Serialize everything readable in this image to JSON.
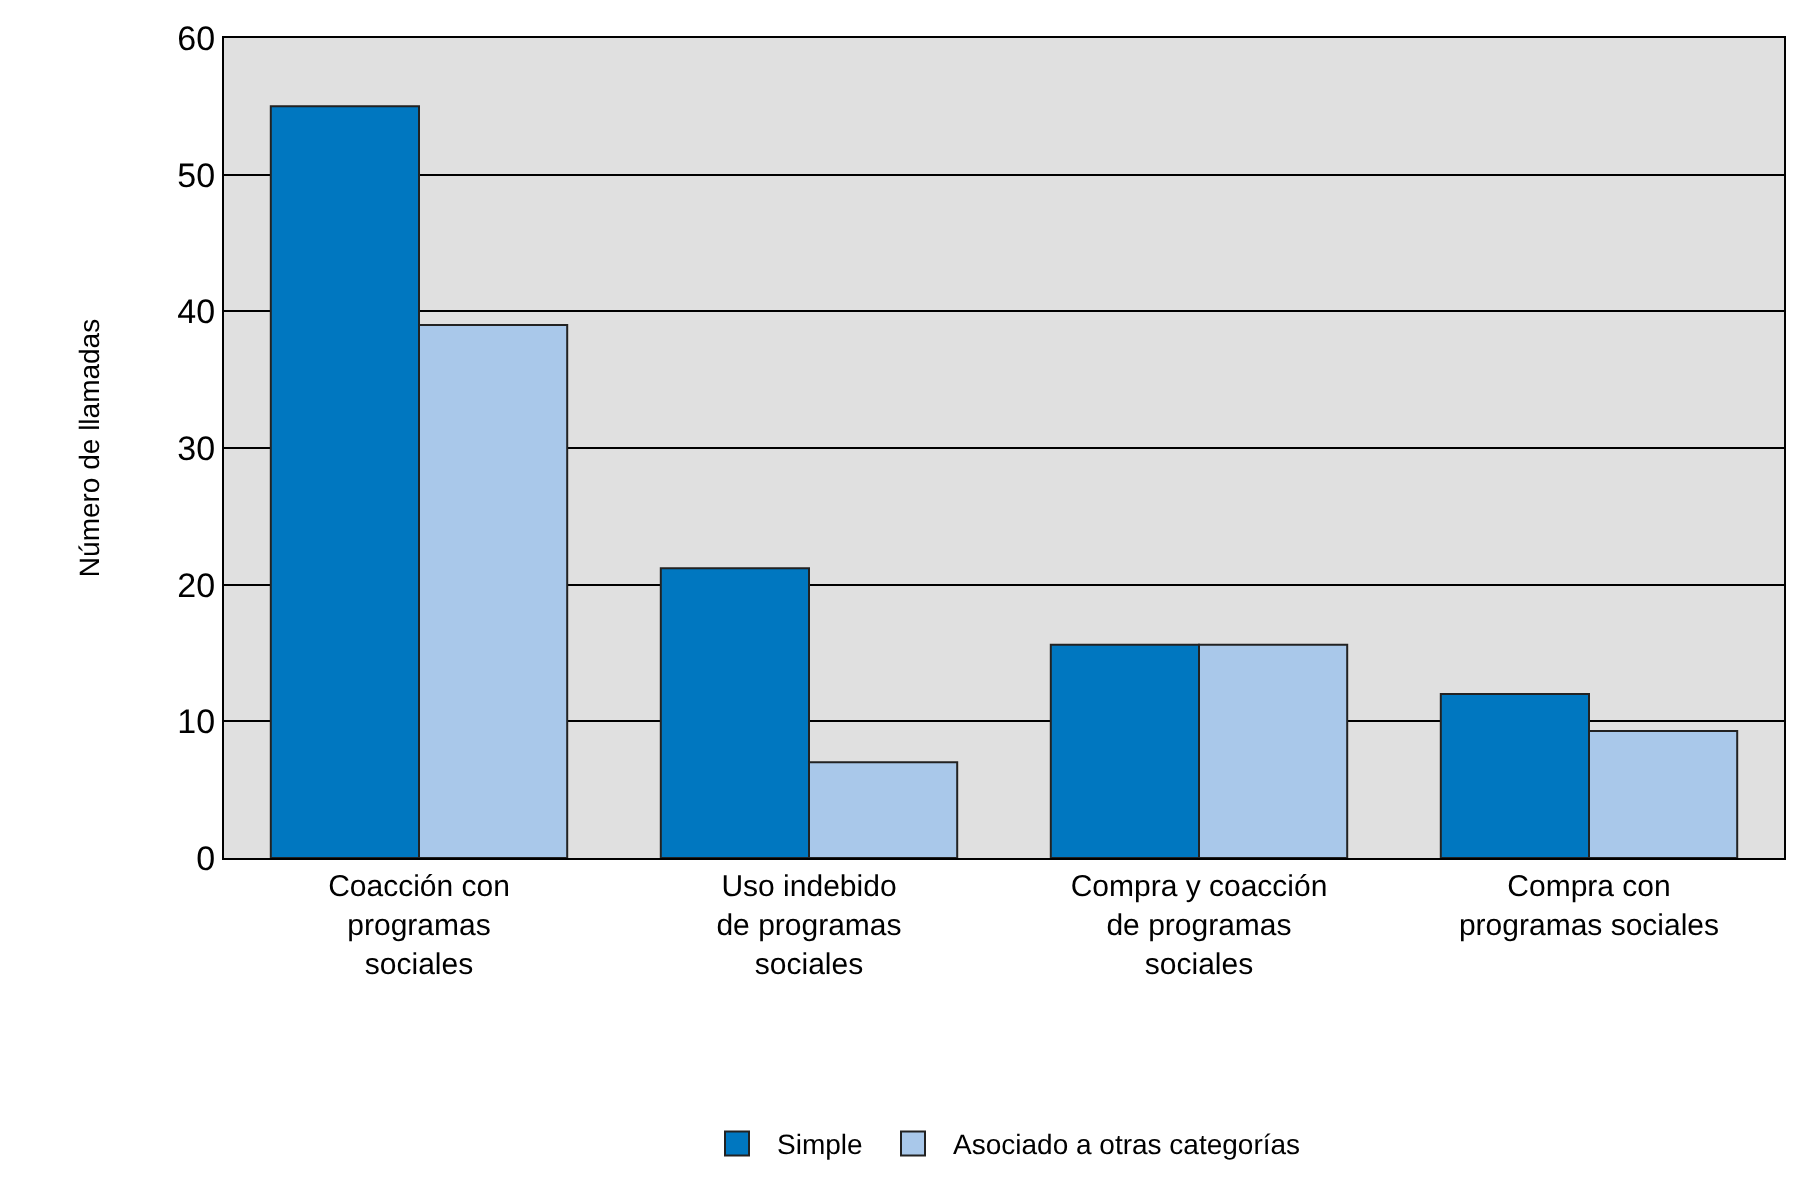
{
  "chart_data": {
    "type": "bar",
    "ylabel": "Número de llamadas",
    "categories": [
      "Coacción con\nprogramas\nsociales",
      "Uso indebido\nde programas\nsociales",
      "Compra y coacción\nde programas\nsociales",
      "Compra con\nprogramas sociales"
    ],
    "series": [
      {
        "name": "Simple",
        "color": "#0077c0",
        "values": [
          55,
          21.2,
          15.6,
          12
        ]
      },
      {
        "name": "Asociado a otras categorías",
        "color": "#a9c8ea",
        "values": [
          39,
          7,
          15.6,
          9.3
        ]
      }
    ],
    "ylim": [
      0,
      60
    ],
    "yticks": [
      0,
      10,
      20,
      30,
      40,
      50,
      60
    ],
    "grid": "y",
    "legend": "bottom"
  }
}
